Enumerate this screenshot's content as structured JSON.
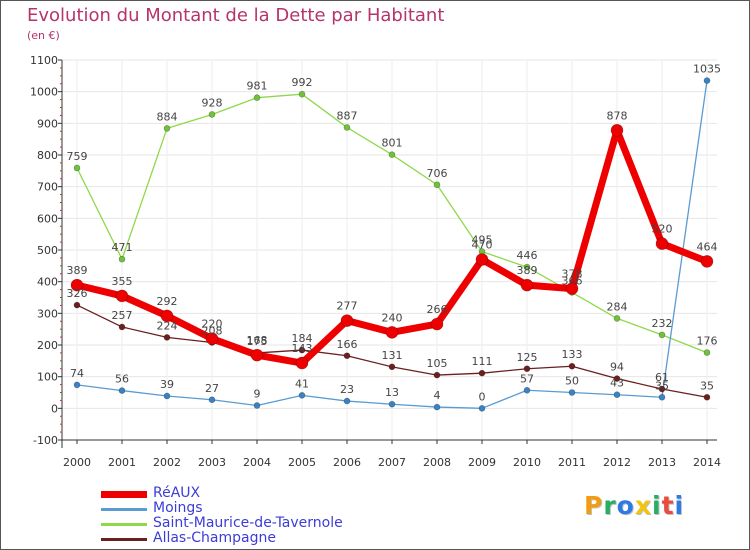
{
  "title": "Evolution du Montant de la Dette par Habitant",
  "subtitle": "(en €)",
  "chart_data": {
    "type": "line",
    "title": "Evolution du Montant de la Dette par Habitant",
    "ylabel": "(en €)",
    "xlabel": "",
    "ylim": [
      -100,
      1100
    ],
    "yticks": [
      -100,
      0,
      100,
      200,
      300,
      400,
      500,
      600,
      700,
      800,
      900,
      1000,
      1100
    ],
    "categories": [
      "2000",
      "2001",
      "2002",
      "2003",
      "2004",
      "2005",
      "2006",
      "2007",
      "2008",
      "2009",
      "2010",
      "2011",
      "2012",
      "2013",
      "2014"
    ],
    "grid": true,
    "series": [
      {
        "name": "Saint-Maurice-de-Tavernole",
        "color": "#8fd84a",
        "marker": "#6fc23a",
        "line_width": 1.3,
        "marker_r": 3,
        "values": [
          759,
          471,
          884,
          928,
          981,
          992,
          887,
          801,
          706,
          495,
          446,
          366,
          284,
          232,
          176
        ]
      },
      {
        "name": "Allas-Champagne",
        "color": "#6b1f1f",
        "marker": "#6b1f1f",
        "line_width": 1.3,
        "marker_r": 3,
        "values": [
          326,
          257,
          224,
          208,
          175,
          184,
          166,
          131,
          105,
          111,
          125,
          133,
          94,
          61,
          35
        ]
      },
      {
        "name": "Moings",
        "color": "#5a9bd2",
        "marker": "#3b82c4",
        "line_width": 1.3,
        "marker_r": 3,
        "values": [
          74,
          56,
          39,
          27,
          9,
          41,
          23,
          13,
          4,
          0,
          57,
          50,
          43,
          35,
          1035
        ]
      },
      {
        "name": "RéAUX",
        "color": "#ee0000",
        "marker": "#ee0000",
        "line_width": 7,
        "marker_r": 6,
        "values": [
          389,
          355,
          292,
          220,
          168,
          143,
          277,
          240,
          266,
          470,
          389,
          378,
          878,
          520,
          464
        ]
      }
    ],
    "legend_order": [
      "RéAUX",
      "Moings",
      "Saint-Maurice-de-Tavernole",
      "Allas-Champagne"
    ],
    "legend_position": "bottom-left"
  },
  "logo": {
    "letters": [
      "P",
      "r",
      "o",
      "x",
      "i",
      "t",
      "i"
    ],
    "colors": [
      "#f39c12",
      "#27ae60",
      "#2c7be5",
      "#f1c40f",
      "#27ae60",
      "#e74c3c",
      "#2c7be5"
    ]
  }
}
